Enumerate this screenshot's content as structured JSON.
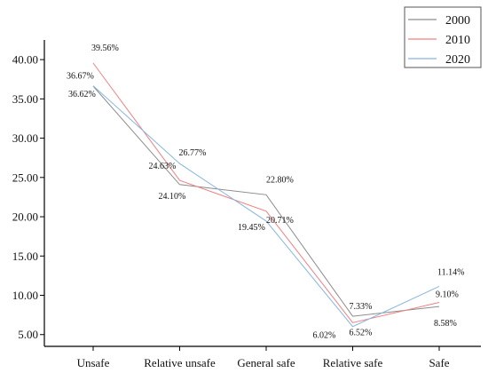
{
  "chart_data": {
    "type": "line",
    "title": "",
    "xlabel": "",
    "ylabel": "",
    "categories": [
      "Unsafe",
      "Relative unsafe",
      "General safe",
      "Relative safe",
      "Safe"
    ],
    "ylim": [
      3.5,
      42.5
    ],
    "yticks": [
      "5.00",
      "10.00",
      "15.00",
      "20.00",
      "25.00",
      "30.00",
      "35.00",
      "40.00"
    ],
    "grid": false,
    "legend": "top-right",
    "series": [
      {
        "name": "2000",
        "color": "#8c8c8c",
        "values": [
          36.62,
          24.1,
          22.8,
          7.33,
          8.58
        ],
        "labels": [
          "36.62%",
          "24.10%",
          "22.80%",
          "7.33%",
          "8.58%"
        ]
      },
      {
        "name": "2010",
        "color": "#f08080",
        "values": [
          39.56,
          24.63,
          20.71,
          6.52,
          9.1
        ],
        "labels": [
          "39.56%",
          "24.63%",
          "20.71%",
          "6.52%",
          "9.10%"
        ]
      },
      {
        "name": "2020",
        "color": "#87b5e0",
        "values": [
          36.67,
          26.77,
          19.45,
          6.02,
          11.14
        ],
        "labels": [
          "36.67%",
          "26.77%",
          "19.45%",
          "6.02%",
          "11.14%"
        ]
      }
    ]
  }
}
